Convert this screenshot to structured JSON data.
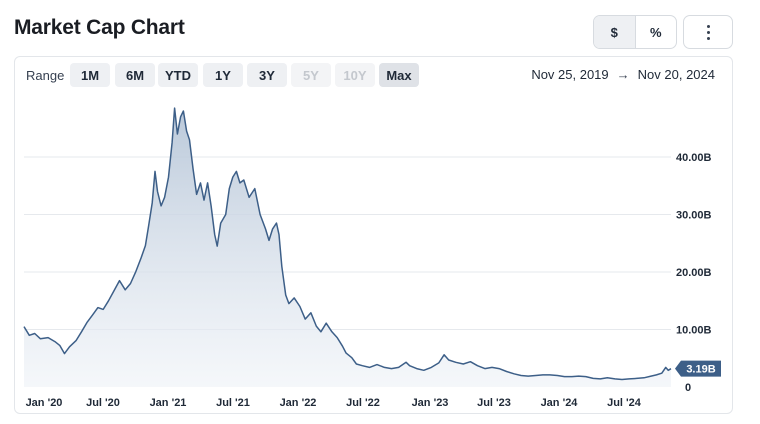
{
  "header": {
    "title": "Market Cap Chart",
    "unit_options": [
      "$",
      "%"
    ],
    "active_unit": "$",
    "more_icon": "vertical-dots-icon"
  },
  "range": {
    "label": "Range",
    "buttons": [
      {
        "label": "1M",
        "state": "normal"
      },
      {
        "label": "6M",
        "state": "normal"
      },
      {
        "label": "YTD",
        "state": "normal"
      },
      {
        "label": "1Y",
        "state": "normal"
      },
      {
        "label": "3Y",
        "state": "normal"
      },
      {
        "label": "5Y",
        "state": "disabled"
      },
      {
        "label": "10Y",
        "state": "disabled"
      },
      {
        "label": "Max",
        "state": "active"
      }
    ],
    "from": "Nov 25, 2019",
    "to": "Nov 20, 2024",
    "arrow_icon": "arrow-right-icon"
  },
  "chart_data": {
    "type": "area",
    "x_tick_labels": [
      "Jan '20",
      "Jul '20",
      "Jan '21",
      "Jul '21",
      "Jan '22",
      "Jul '22",
      "Jan '23",
      "Jul '23",
      "Jan '24",
      "Jul '24"
    ],
    "y_tick_labels": [
      "0",
      "10.00B",
      "20.00B",
      "30.00B",
      "40.00B"
    ],
    "y_ticks": [
      0,
      10,
      20,
      30,
      40
    ],
    "ylim": [
      0,
      50
    ],
    "x_start": "2019-11-25",
    "x_end": "2024-11-20",
    "unit": "B",
    "grid": true,
    "line_color": "#3d5f88",
    "fill_color": "#c9d4e1",
    "last_value_label": "3.19B",
    "series": [
      {
        "points": [
          [
            "2019-11-25",
            10.5
          ],
          [
            "2019-12-10",
            9.0
          ],
          [
            "2019-12-25",
            9.3
          ],
          [
            "2020-01-10",
            8.4
          ],
          [
            "2020-02-01",
            8.6
          ],
          [
            "2020-02-20",
            7.9
          ],
          [
            "2020-03-05",
            7.2
          ],
          [
            "2020-03-18",
            5.8
          ],
          [
            "2020-04-01",
            7.0
          ],
          [
            "2020-04-20",
            8.1
          ],
          [
            "2020-05-05",
            9.6
          ],
          [
            "2020-05-20",
            11.2
          ],
          [
            "2020-06-05",
            12.5
          ],
          [
            "2020-06-20",
            13.8
          ],
          [
            "2020-07-05",
            13.5
          ],
          [
            "2020-07-20",
            15.0
          ],
          [
            "2020-08-05",
            16.8
          ],
          [
            "2020-08-20",
            18.5
          ],
          [
            "2020-09-05",
            16.9
          ],
          [
            "2020-09-20",
            18.0
          ],
          [
            "2020-10-05",
            20.1
          ],
          [
            "2020-10-20",
            22.5
          ],
          [
            "2020-11-01",
            24.6
          ],
          [
            "2020-11-10",
            28.0
          ],
          [
            "2020-11-20",
            32.0
          ],
          [
            "2020-11-28",
            37.5
          ],
          [
            "2020-12-05",
            34.0
          ],
          [
            "2020-12-15",
            31.5
          ],
          [
            "2020-12-25",
            33.0
          ],
          [
            "2021-01-05",
            36.5
          ],
          [
            "2021-01-15",
            42.5
          ],
          [
            "2021-01-22",
            48.5
          ],
          [
            "2021-01-30",
            44.0
          ],
          [
            "2021-02-08",
            47.0
          ],
          [
            "2021-02-16",
            48.0
          ],
          [
            "2021-02-25",
            44.5
          ],
          [
            "2021-03-05",
            43.0
          ],
          [
            "2021-03-15",
            38.0
          ],
          [
            "2021-03-25",
            33.5
          ],
          [
            "2021-04-05",
            35.5
          ],
          [
            "2021-04-15",
            32.5
          ],
          [
            "2021-04-25",
            35.5
          ],
          [
            "2021-05-05",
            31.5
          ],
          [
            "2021-05-15",
            26.5
          ],
          [
            "2021-05-22",
            24.5
          ],
          [
            "2021-06-01",
            28.5
          ],
          [
            "2021-06-15",
            30.0
          ],
          [
            "2021-06-25",
            34.5
          ],
          [
            "2021-07-05",
            36.5
          ],
          [
            "2021-07-15",
            37.5
          ],
          [
            "2021-07-25",
            35.5
          ],
          [
            "2021-08-05",
            36.0
          ],
          [
            "2021-08-20",
            33.0
          ],
          [
            "2021-09-05",
            34.5
          ],
          [
            "2021-09-20",
            30.0
          ],
          [
            "2021-10-05",
            27.5
          ],
          [
            "2021-10-15",
            25.5
          ],
          [
            "2021-10-25",
            27.5
          ],
          [
            "2021-11-05",
            28.5
          ],
          [
            "2021-11-12",
            26.5
          ],
          [
            "2021-11-20",
            21.0
          ],
          [
            "2021-12-01",
            16.0
          ],
          [
            "2021-12-10",
            14.5
          ],
          [
            "2021-12-25",
            15.5
          ],
          [
            "2022-01-10",
            14.0
          ],
          [
            "2022-01-25",
            11.8
          ],
          [
            "2022-02-10",
            12.9
          ],
          [
            "2022-02-25",
            10.6
          ],
          [
            "2022-03-10",
            9.6
          ],
          [
            "2022-03-25",
            11.1
          ],
          [
            "2022-04-10",
            9.6
          ],
          [
            "2022-04-25",
            8.6
          ],
          [
            "2022-05-10",
            7.1
          ],
          [
            "2022-05-20",
            5.9
          ],
          [
            "2022-06-05",
            5.1
          ],
          [
            "2022-06-18",
            4.0
          ],
          [
            "2022-07-05",
            3.7
          ],
          [
            "2022-07-25",
            3.4
          ],
          [
            "2022-08-15",
            3.9
          ],
          [
            "2022-09-05",
            3.4
          ],
          [
            "2022-09-25",
            3.2
          ],
          [
            "2022-10-15",
            3.4
          ],
          [
            "2022-11-05",
            4.3
          ],
          [
            "2022-11-15",
            3.7
          ],
          [
            "2022-12-05",
            3.2
          ],
          [
            "2022-12-25",
            2.9
          ],
          [
            "2023-01-15",
            3.4
          ],
          [
            "2023-02-05",
            4.2
          ],
          [
            "2023-02-20",
            5.6
          ],
          [
            "2023-03-05",
            4.7
          ],
          [
            "2023-03-25",
            4.3
          ],
          [
            "2023-04-15",
            4.0
          ],
          [
            "2023-05-05",
            4.4
          ],
          [
            "2023-05-25",
            3.7
          ],
          [
            "2023-06-15",
            3.2
          ],
          [
            "2023-07-05",
            3.4
          ],
          [
            "2023-07-25",
            3.2
          ],
          [
            "2023-08-15",
            2.7
          ],
          [
            "2023-09-05",
            2.3
          ],
          [
            "2023-09-25",
            2.0
          ],
          [
            "2023-10-15",
            1.9
          ],
          [
            "2023-11-05",
            2.0
          ],
          [
            "2023-11-25",
            2.1
          ],
          [
            "2023-12-15",
            2.1
          ],
          [
            "2024-01-05",
            2.0
          ],
          [
            "2024-01-25",
            1.8
          ],
          [
            "2024-02-15",
            1.8
          ],
          [
            "2024-03-05",
            1.9
          ],
          [
            "2024-03-25",
            1.8
          ],
          [
            "2024-04-15",
            1.5
          ],
          [
            "2024-05-05",
            1.4
          ],
          [
            "2024-05-25",
            1.6
          ],
          [
            "2024-06-15",
            1.4
          ],
          [
            "2024-07-05",
            1.3
          ],
          [
            "2024-07-25",
            1.4
          ],
          [
            "2024-08-15",
            1.5
          ],
          [
            "2024-09-05",
            1.6
          ],
          [
            "2024-09-25",
            1.9
          ],
          [
            "2024-10-10",
            2.1
          ],
          [
            "2024-10-25",
            2.4
          ],
          [
            "2024-11-05",
            3.4
          ],
          [
            "2024-11-12",
            2.9
          ],
          [
            "2024-11-20",
            3.19
          ]
        ]
      }
    ]
  }
}
